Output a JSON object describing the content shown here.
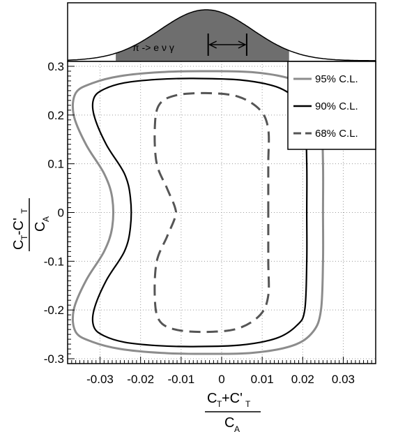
{
  "chart_data": {
    "type": "line",
    "top_panel": {
      "label": "π -> e ν γ",
      "shape": "gaussian",
      "mean": -0.004,
      "sigma": 0.012,
      "shaded_range": [
        -0.0275,
        0.0175
      ],
      "interval": [
        -0.0035,
        0.0065
      ],
      "xlim": [
        -0.04,
        0.04
      ]
    },
    "xlim": [
      -0.038,
      0.038
    ],
    "ylim": [
      -0.31,
      0.31
    ],
    "x_ticks": [
      "-0.03",
      "-0.02",
      "-0.01",
      "0",
      "0.01",
      "0.02",
      "0.03"
    ],
    "x_tick_values": [
      -0.03,
      -0.02,
      -0.01,
      0,
      0.01,
      0.02,
      0.03
    ],
    "y_ticks": [
      "0.3",
      "0.2",
      "0.1",
      "0",
      "-0.1",
      "-0.2",
      "-0.3"
    ],
    "y_tick_values": [
      0.3,
      0.2,
      0.1,
      0,
      -0.1,
      -0.2,
      -0.3
    ],
    "xlabel": {
      "num_main": "C",
      "num_sub1": "T",
      "num_plus": "+C'",
      "num_sub2": "T",
      "den_main": "C",
      "den_sub": "A"
    },
    "ylabel": {
      "num_main": "C",
      "num_sub1": "T",
      "num_minus": "-C'",
      "num_sub2": "T",
      "den_main": "C",
      "den_sub": "A"
    },
    "grid": true,
    "legend_position": "top-right",
    "series": [
      {
        "name": "95% C.L.",
        "color": "#8c8c8c",
        "style": "solid",
        "x": [
          0.025,
          0.025,
          0.0245,
          0.0225,
          0.0175,
          0.0075,
          -0.005,
          -0.015,
          -0.025,
          -0.032,
          -0.036,
          -0.0365,
          -0.0335,
          -0.029,
          -0.027,
          -0.027,
          -0.029,
          -0.0335,
          -0.0365,
          -0.036,
          -0.032,
          -0.025,
          -0.015,
          -0.005,
          0.0075,
          0.0175,
          0.0225,
          0.0245,
          0.025
        ],
        "y": [
          0,
          0.1,
          0.2,
          0.245,
          0.273,
          0.288,
          0.29,
          0.288,
          0.28,
          0.265,
          0.245,
          0.2,
          0.14,
          0.08,
          0.03,
          -0.03,
          -0.08,
          -0.14,
          -0.2,
          -0.245,
          -0.265,
          -0.28,
          -0.288,
          -0.29,
          -0.288,
          -0.273,
          -0.245,
          -0.2,
          -0.1
        ]
      },
      {
        "name": "90% C.L.",
        "color": "#000000",
        "style": "solid",
        "x": [
          0.021,
          0.021,
          0.0205,
          0.0185,
          0.0135,
          0.0045,
          -0.007,
          -0.016,
          -0.024,
          -0.029,
          -0.0315,
          -0.0315,
          -0.0285,
          -0.024,
          -0.0225,
          -0.0225,
          -0.024,
          -0.0285,
          -0.0315,
          -0.0315,
          -0.029,
          -0.024,
          -0.016,
          -0.007,
          0.0045,
          0.0135,
          0.0185,
          0.0205,
          0.021
        ],
        "y": [
          0,
          0.1,
          0.2,
          0.232,
          0.258,
          0.272,
          0.275,
          0.273,
          0.266,
          0.253,
          0.235,
          0.2,
          0.14,
          0.08,
          0.03,
          -0.03,
          -0.08,
          -0.14,
          -0.2,
          -0.235,
          -0.253,
          -0.266,
          -0.273,
          -0.275,
          -0.272,
          -0.258,
          -0.232,
          -0.2,
          -0.1
        ]
      },
      {
        "name": "68% C.L.",
        "color": "#555555",
        "style": "dashed",
        "x": [
          0.0115,
          0.0115,
          0.0115,
          0.0095,
          0.004,
          -0.004,
          -0.0115,
          -0.0155,
          -0.0165,
          -0.016,
          -0.0135,
          -0.0115,
          -0.0115,
          -0.0135,
          -0.016,
          -0.0165,
          -0.0155,
          -0.0115,
          -0.004,
          0.004,
          0.0095,
          0.0115,
          0.0115
        ],
        "y": [
          0,
          0.1,
          0.17,
          0.21,
          0.238,
          0.245,
          0.24,
          0.22,
          0.17,
          0.1,
          0.05,
          0.01,
          -0.01,
          -0.05,
          -0.1,
          -0.17,
          -0.22,
          -0.24,
          -0.245,
          -0.238,
          -0.21,
          -0.17,
          -0.1
        ]
      }
    ]
  }
}
